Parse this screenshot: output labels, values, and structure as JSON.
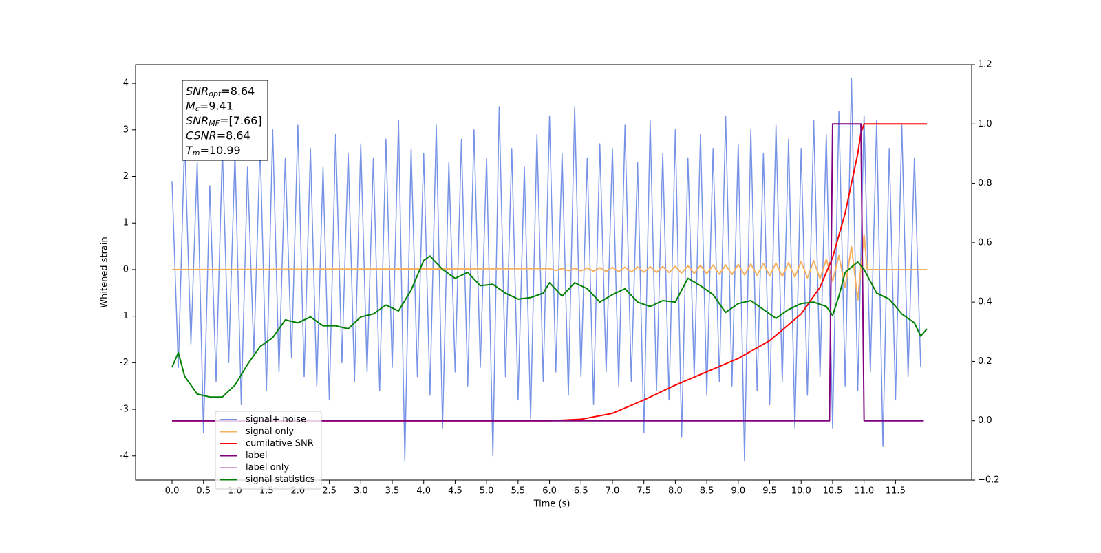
{
  "chart_data": {
    "type": "line",
    "xlabel": "Time (s)",
    "ylabel": "Whitened strain",
    "xlim": [
      -0.58,
      12.71
    ],
    "ylim": [
      -4.52,
      4.4
    ],
    "y2lim": [
      -0.2,
      1.2
    ],
    "xticks": [
      {
        "value": 0,
        "label": "0.0"
      },
      {
        "value": 0.5,
        "label": "0.5"
      },
      {
        "value": 1,
        "label": "1.0"
      },
      {
        "value": 1.5,
        "label": "1.5"
      },
      {
        "value": 2,
        "label": "2.0"
      },
      {
        "value": 2.5,
        "label": "2.5"
      },
      {
        "value": 3,
        "label": "3.0"
      },
      {
        "value": 3.5,
        "label": "3.5"
      },
      {
        "value": 4,
        "label": "4.0"
      },
      {
        "value": 4.5,
        "label": "4.5"
      },
      {
        "value": 5,
        "label": "5.0"
      },
      {
        "value": 5.5,
        "label": "5.5"
      },
      {
        "value": 6,
        "label": "6.0"
      },
      {
        "value": 6.5,
        "label": "6.5"
      },
      {
        "value": 7,
        "label": "7.0"
      },
      {
        "value": 7.5,
        "label": "7.5"
      },
      {
        "value": 8,
        "label": "8.0"
      },
      {
        "value": 8.5,
        "label": "8.5"
      },
      {
        "value": 9,
        "label": "9.0"
      },
      {
        "value": 9.5,
        "label": "9.5"
      },
      {
        "value": 10,
        "label": "10.0"
      },
      {
        "value": 10.5,
        "label": "10.5"
      },
      {
        "value": 11,
        "label": "11.0"
      },
      {
        "value": 11.5,
        "label": "11.5"
      }
    ],
    "yticks": [
      -4,
      -3,
      -2,
      -1,
      0,
      1,
      2,
      3,
      4
    ],
    "y2ticks": [
      {
        "value": -0.2,
        "label": "−0.2"
      },
      {
        "value": 0,
        "label": "0.0"
      },
      {
        "value": 0.2,
        "label": "0.2"
      },
      {
        "value": 0.4,
        "label": "0.4"
      },
      {
        "value": 0.6,
        "label": "0.6"
      },
      {
        "value": 0.8,
        "label": "0.8"
      },
      {
        "value": 1,
        "label": "1.0"
      },
      {
        "value": 1.2,
        "label": "1.2"
      }
    ],
    "legend": "lower left",
    "annotation": [
      {
        "main": "SNR",
        "sub": "opt",
        "rest": "=8.64"
      },
      {
        "main": "M",
        "sub": "c",
        "rest": "=9.41"
      },
      {
        "main": "SNR",
        "sub": "MF",
        "rest": "=[7.66]"
      },
      {
        "main": "CSNR",
        "rest": "=8.64"
      },
      {
        "main": "T",
        "sub": "m",
        "rest": "=10.99"
      }
    ],
    "series": [
      {
        "name": "signal+ noise",
        "color": "#7793e6",
        "x": [
          0,
          0.1,
          0.2,
          0.3,
          0.4,
          0.5,
          0.6,
          0.7,
          0.8,
          0.9,
          1,
          1.1,
          1.2,
          1.3,
          1.4,
          1.5,
          1.6,
          1.7,
          1.8,
          1.9,
          2,
          2.1,
          2.2,
          2.3,
          2.4,
          2.5,
          2.6,
          2.7,
          2.8,
          2.9,
          3,
          3.1,
          3.2,
          3.3,
          3.4,
          3.5,
          3.6,
          3.7,
          3.8,
          3.9,
          4,
          4.1,
          4.2,
          4.3,
          4.4,
          4.5,
          4.6,
          4.7,
          4.8,
          4.9,
          5,
          5.1,
          5.2,
          5.3,
          5.4,
          5.5,
          5.6,
          5.7,
          5.8,
          5.9,
          6,
          6.1,
          6.2,
          6.3,
          6.4,
          6.5,
          6.6,
          6.7,
          6.8,
          6.9,
          7,
          7.1,
          7.2,
          7.3,
          7.4,
          7.5,
          7.6,
          7.7,
          7.8,
          7.9,
          8,
          8.1,
          8.2,
          8.3,
          8.4,
          8.5,
          8.6,
          8.7,
          8.8,
          8.9,
          9,
          9.1,
          9.2,
          9.3,
          9.4,
          9.5,
          9.6,
          9.7,
          9.8,
          9.9,
          10,
          10.1,
          10.2,
          10.3,
          10.4,
          10.5,
          10.6,
          10.7,
          10.8,
          10.9,
          11,
          11.1,
          11.2,
          11.3,
          11.4,
          11.5,
          11.6,
          11.7,
          11.8,
          11.9
        ],
        "values": [
          1.9,
          -2.1,
          2.8,
          -1.6,
          2.3,
          -3.5,
          1.8,
          -2.4,
          2.6,
          -2.0,
          2.5,
          -2.9,
          2.2,
          -1.8,
          2.7,
          -2.6,
          3.0,
          -2.2,
          2.4,
          -1.9,
          3.1,
          -2.3,
          2.6,
          -2.5,
          2.2,
          -2.8,
          2.9,
          -2.0,
          2.5,
          -2.4,
          2.7,
          -2.2,
          2.4,
          -2.6,
          2.8,
          -2.1,
          3.2,
          -4.1,
          2.6,
          -2.3,
          2.5,
          -2.7,
          3.1,
          -3.4,
          2.3,
          -2.2,
          2.8,
          -2.5,
          3.0,
          -2.1,
          2.4,
          -4.0,
          3.5,
          -2.3,
          2.6,
          -2.8,
          2.2,
          -3.2,
          2.9,
          -2.4,
          3.3,
          -2.2,
          2.5,
          -2.7,
          3.5,
          -2.3,
          2.4,
          -2.9,
          2.7,
          -2.2,
          2.6,
          -2.5,
          3.1,
          -2.4,
          2.3,
          -3.5,
          3.2,
          -2.6,
          2.5,
          -2.8,
          3.0,
          -3.6,
          2.4,
          -2.3,
          2.9,
          -2.7,
          2.6,
          -2.4,
          3.3,
          -2.5,
          2.7,
          -4.1,
          3.0,
          -2.6,
          2.5,
          -2.9,
          3.1,
          -2.4,
          2.8,
          -3.4,
          2.6,
          -2.7,
          3.2,
          -2.3,
          2.9,
          -3.4,
          3.4,
          -2.5,
          4.1,
          -2.6,
          3.3,
          -2.2,
          3.2,
          -3.8,
          2.6,
          -2.8,
          3.1,
          -2.3,
          2.4,
          -2.1
        ]
      },
      {
        "name": "signal only",
        "color": "#f5b060",
        "x": [
          0,
          6,
          6.1,
          6.2,
          6.3,
          6.4,
          6.5,
          6.6,
          6.7,
          6.8,
          6.9,
          7,
          7.1,
          7.2,
          7.3,
          7.4,
          7.5,
          7.6,
          7.7,
          7.8,
          7.9,
          8,
          8.1,
          8.2,
          8.3,
          8.4,
          8.5,
          8.6,
          8.7,
          8.8,
          8.9,
          9,
          9.1,
          9.2,
          9.3,
          9.4,
          9.5,
          9.6,
          9.7,
          9.8,
          9.9,
          10,
          10.1,
          10.2,
          10.3,
          10.4,
          10.5,
          10.6,
          10.7,
          10.8,
          10.9,
          11,
          11.05,
          12
        ],
        "values": [
          0,
          0.02,
          -0.02,
          0.025,
          -0.025,
          0.03,
          -0.03,
          0.035,
          -0.035,
          0.04,
          -0.04,
          0.045,
          -0.045,
          0.05,
          -0.05,
          0.055,
          -0.055,
          0.06,
          -0.06,
          0.065,
          -0.065,
          0.07,
          -0.075,
          0.08,
          -0.085,
          0.09,
          -0.09,
          0.095,
          -0.1,
          0.1,
          -0.105,
          0.11,
          -0.115,
          0.12,
          -0.125,
          0.13,
          -0.135,
          0.14,
          -0.145,
          0.15,
          -0.16,
          0.17,
          -0.18,
          0.19,
          -0.2,
          0.22,
          -0.25,
          0.3,
          -0.38,
          0.5,
          -0.65,
          0.75,
          0,
          0
        ]
      },
      {
        "name": "cumilative SNR",
        "color": "#ff0000",
        "axis": "y2",
        "x": [
          0,
          6,
          6.5,
          7,
          7.5,
          8,
          8.5,
          9,
          9.5,
          10,
          10.3,
          10.5,
          10.7,
          10.8,
          10.9,
          10.95,
          11,
          12
        ],
        "values": [
          0,
          0,
          0.005,
          0.025,
          0.07,
          0.12,
          0.165,
          0.21,
          0.27,
          0.36,
          0.45,
          0.55,
          0.7,
          0.8,
          0.9,
          0.97,
          1,
          1
        ]
      },
      {
        "name": "label",
        "color": "#800080",
        "axis": "y2",
        "x": [
          0,
          10.45,
          10.5,
          10.95,
          11,
          11.95
        ],
        "values": [
          0,
          0,
          1,
          1,
          0,
          0
        ]
      },
      {
        "name": "label only",
        "color": "#cfa0cf",
        "axis": "y2",
        "x": [],
        "values": []
      },
      {
        "name": "signal statistics",
        "color": "#008000",
        "axis": "y2",
        "x": [
          0,
          0.1,
          0.2,
          0.4,
          0.6,
          0.8,
          1,
          1.2,
          1.4,
          1.6,
          1.8,
          2,
          2.2,
          2.4,
          2.6,
          2.8,
          3,
          3.2,
          3.4,
          3.6,
          3.8,
          4,
          4.1,
          4.3,
          4.5,
          4.7,
          4.9,
          5.1,
          5.3,
          5.5,
          5.7,
          5.9,
          6,
          6.2,
          6.4,
          6.6,
          6.8,
          7,
          7.2,
          7.4,
          7.6,
          7.8,
          8,
          8.2,
          8.4,
          8.6,
          8.8,
          9,
          9.2,
          9.4,
          9.6,
          9.8,
          10,
          10.2,
          10.4,
          10.5,
          10.6,
          10.7,
          10.9,
          11,
          11.2,
          11.4,
          11.6,
          11.8,
          11.9,
          12
        ],
        "values": [
          0.18,
          0.23,
          0.15,
          0.09,
          0.08,
          0.08,
          0.12,
          0.19,
          0.25,
          0.28,
          0.34,
          0.33,
          0.35,
          0.32,
          0.32,
          0.31,
          0.35,
          0.36,
          0.39,
          0.37,
          0.44,
          0.54,
          0.555,
          0.51,
          0.48,
          0.5,
          0.455,
          0.46,
          0.43,
          0.41,
          0.415,
          0.43,
          0.465,
          0.42,
          0.465,
          0.445,
          0.4,
          0.425,
          0.445,
          0.4,
          0.385,
          0.405,
          0.4,
          0.48,
          0.455,
          0.425,
          0.365,
          0.395,
          0.405,
          0.375,
          0.345,
          0.375,
          0.395,
          0.4,
          0.385,
          0.355,
          0.42,
          0.5,
          0.535,
          0.51,
          0.43,
          0.41,
          0.36,
          0.33,
          0.285,
          0.31
        ]
      }
    ]
  }
}
